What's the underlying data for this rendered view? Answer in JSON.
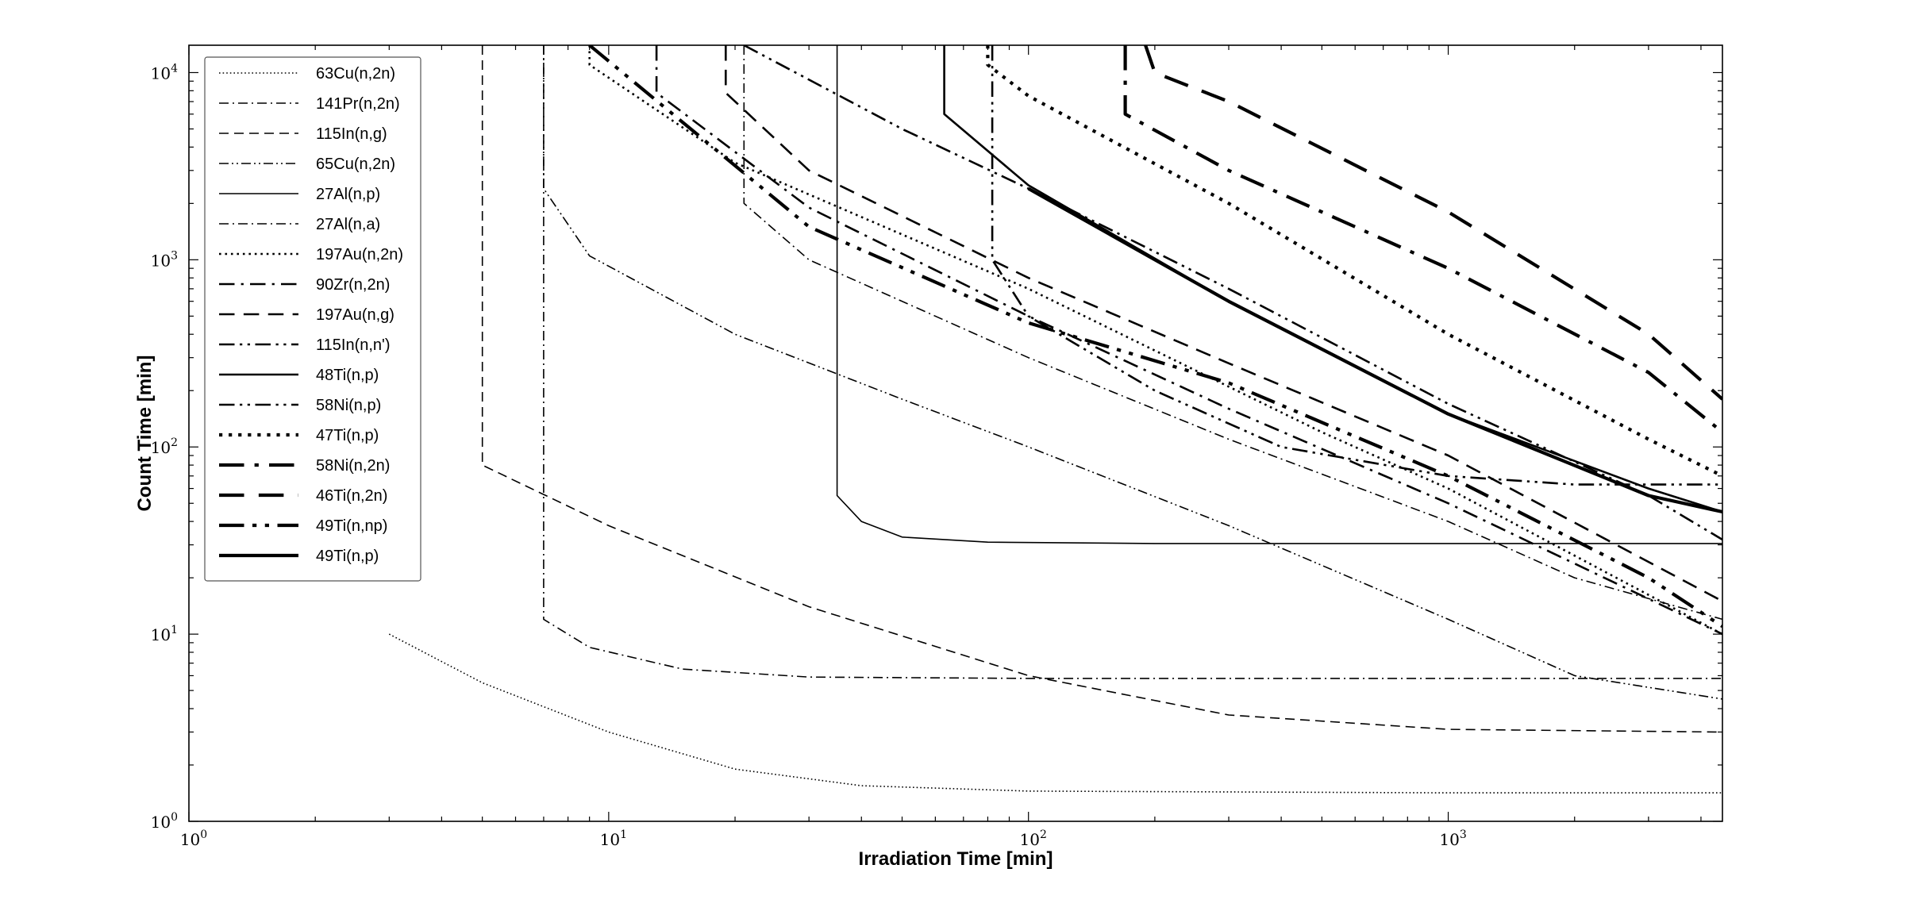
{
  "chart_data": {
    "type": "line",
    "title": "",
    "xlabel": "Irradiation Time [min]",
    "ylabel": "Count Time [min]",
    "xscale": "log",
    "yscale": "log",
    "xlim": [
      1,
      4500
    ],
    "ylim": [
      1,
      14000
    ],
    "grid": false,
    "legend_position": "top-left",
    "x_ticks": [
      {
        "base": "10",
        "exp": "0",
        "value": 1
      },
      {
        "base": "10",
        "exp": "1",
        "value": 10
      },
      {
        "base": "10",
        "exp": "2",
        "value": 100
      },
      {
        "base": "10",
        "exp": "3",
        "value": 1000
      }
    ],
    "y_ticks": [
      {
        "base": "10",
        "exp": "0",
        "value": 1
      },
      {
        "base": "10",
        "exp": "1",
        "value": 10
      },
      {
        "base": "10",
        "exp": "2",
        "value": 100
      },
      {
        "base": "10",
        "exp": "3",
        "value": 1000
      },
      {
        "base": "10",
        "exp": "4",
        "value": 10000
      }
    ],
    "series": [
      {
        "name": "63Cu(n,2n)",
        "color": "#000000",
        "linestyle": "dotted",
        "weight": "thin",
        "points": [
          [
            3,
            10
          ],
          [
            5,
            5.5
          ],
          [
            10,
            3
          ],
          [
            20,
            1.9
          ],
          [
            40,
            1.55
          ],
          [
            100,
            1.45
          ],
          [
            1000,
            1.42
          ],
          [
            4500,
            1.42
          ]
        ]
      },
      {
        "name": "141Pr(n,2n)",
        "color": "#000000",
        "linestyle": "dashdot",
        "weight": "thin",
        "points": [
          [
            7,
            14000
          ],
          [
            7,
            12
          ],
          [
            9,
            8.5
          ],
          [
            15,
            6.5
          ],
          [
            30,
            5.9
          ],
          [
            100,
            5.8
          ],
          [
            1000,
            5.8
          ],
          [
            4500,
            5.8
          ]
        ]
      },
      {
        "name": "115In(n,g)",
        "color": "#000000",
        "linestyle": "dashed",
        "weight": "thin",
        "points": [
          [
            5,
            14000
          ],
          [
            5,
            80
          ],
          [
            10,
            38
          ],
          [
            30,
            14
          ],
          [
            100,
            6
          ],
          [
            300,
            3.7
          ],
          [
            1000,
            3.1
          ],
          [
            4500,
            3.0
          ]
        ]
      },
      {
        "name": "65Cu(n,2n)",
        "color": "#000000",
        "linestyle": "dashdotdot",
        "weight": "thin",
        "points": [
          [
            7,
            14000
          ],
          [
            7,
            2400
          ],
          [
            9,
            1050
          ],
          [
            20,
            400
          ],
          [
            50,
            180
          ],
          [
            100,
            100
          ],
          [
            300,
            38
          ],
          [
            1000,
            12
          ],
          [
            2000,
            6
          ],
          [
            4500,
            4.5
          ]
        ]
      },
      {
        "name": "27Al(n,p)",
        "color": "#000000",
        "linestyle": "solid",
        "weight": "thin",
        "points": [
          [
            35,
            14000
          ],
          [
            35,
            55
          ],
          [
            40,
            40
          ],
          [
            50,
            33
          ],
          [
            80,
            31
          ],
          [
            200,
            30.5
          ],
          [
            4500,
            30.5
          ]
        ]
      },
      {
        "name": "27Al(n,a)",
        "color": "#000000",
        "linestyle": "dashdot",
        "weight": "thin",
        "points": [
          [
            21,
            14000
          ],
          [
            21,
            2000
          ],
          [
            30,
            1000
          ],
          [
            100,
            300
          ],
          [
            300,
            110
          ],
          [
            1000,
            40
          ],
          [
            2000,
            20
          ],
          [
            4500,
            12
          ]
        ]
      },
      {
        "name": "197Au(n,2n)",
        "color": "#000000",
        "linestyle": "dotted",
        "weight": "medium",
        "points": [
          [
            9,
            14000
          ],
          [
            9,
            11000
          ],
          [
            20,
            3300
          ],
          [
            100,
            700
          ],
          [
            500,
            120
          ],
          [
            1000,
            60
          ],
          [
            4500,
            10
          ]
        ]
      },
      {
        "name": "90Zr(n,2n)",
        "color": "#000000",
        "linestyle": "dashdot",
        "weight": "medium",
        "points": [
          [
            13,
            14000
          ],
          [
            13,
            7800
          ],
          [
            30,
            1900
          ],
          [
            100,
            500
          ],
          [
            300,
            160
          ],
          [
            1000,
            50
          ],
          [
            4500,
            10
          ]
        ]
      },
      {
        "name": "197Au(n,g)",
        "color": "#000000",
        "linestyle": "dashed",
        "weight": "medium",
        "points": [
          [
            19,
            14000
          ],
          [
            19,
            7800
          ],
          [
            30,
            3000
          ],
          [
            100,
            800
          ],
          [
            300,
            280
          ],
          [
            1000,
            90
          ],
          [
            4500,
            15
          ]
        ]
      },
      {
        "name": "115In(n,n')",
        "color": "#000000",
        "linestyle": "dashdotdot",
        "weight": "medium",
        "points": [
          [
            82,
            14000
          ],
          [
            82,
            1000
          ],
          [
            100,
            500
          ],
          [
            200,
            200
          ],
          [
            400,
            100
          ],
          [
            1000,
            70
          ],
          [
            2000,
            63
          ],
          [
            4500,
            63
          ]
        ]
      },
      {
        "name": "48Ti(n,p)",
        "color": "#000000",
        "linestyle": "solid",
        "weight": "medium",
        "points": [
          [
            63,
            14000
          ],
          [
            63,
            6000
          ],
          [
            100,
            2500
          ],
          [
            300,
            600
          ],
          [
            1000,
            150
          ],
          [
            3000,
            60
          ],
          [
            4500,
            45
          ]
        ]
      },
      {
        "name": "58Ni(n,p)",
        "color": "#000000",
        "linestyle": "dashdotdot",
        "weight": "medium",
        "points": [
          [
            21,
            14000
          ],
          [
            50,
            5000
          ],
          [
            100,
            2400
          ],
          [
            300,
            700
          ],
          [
            1000,
            170
          ],
          [
            3000,
            55
          ],
          [
            4500,
            32
          ]
        ]
      },
      {
        "name": "47Ti(n,p)",
        "color": "#000000",
        "linestyle": "dotted",
        "weight": "thick",
        "points": [
          [
            80,
            14000
          ],
          [
            80,
            11000
          ],
          [
            100,
            7500
          ],
          [
            300,
            2000
          ],
          [
            1000,
            400
          ],
          [
            3000,
            110
          ],
          [
            4500,
            70
          ]
        ]
      },
      {
        "name": "58Ni(n,2n)",
        "color": "#000000",
        "linestyle": "dashdot",
        "weight": "thick",
        "points": [
          [
            170,
            14000
          ],
          [
            170,
            6000
          ],
          [
            300,
            3000
          ],
          [
            1000,
            900
          ],
          [
            3000,
            250
          ],
          [
            4500,
            120
          ]
        ]
      },
      {
        "name": "46Ti(n,2n)",
        "color": "#000000",
        "linestyle": "dashed",
        "weight": "thick",
        "points": [
          [
            190,
            14000
          ],
          [
            200,
            10000
          ],
          [
            300,
            7000
          ],
          [
            1000,
            1800
          ],
          [
            3000,
            400
          ],
          [
            4500,
            180
          ]
        ]
      },
      {
        "name": "49Ti(n,np)",
        "color": "#000000",
        "linestyle": "dashdotdot",
        "weight": "thick",
        "points": [
          [
            9,
            14000
          ],
          [
            30,
            1500
          ],
          [
            100,
            460
          ],
          [
            300,
            220
          ],
          [
            1000,
            70
          ],
          [
            3000,
            20
          ],
          [
            4500,
            11
          ]
        ]
      },
      {
        "name": "49Ti(n,p)",
        "color": "#000000",
        "linestyle": "solid",
        "weight": "thick",
        "points": [
          [
            100,
            2400
          ],
          [
            300,
            600
          ],
          [
            1000,
            150
          ],
          [
            3000,
            55
          ],
          [
            4500,
            45
          ]
        ]
      }
    ]
  }
}
